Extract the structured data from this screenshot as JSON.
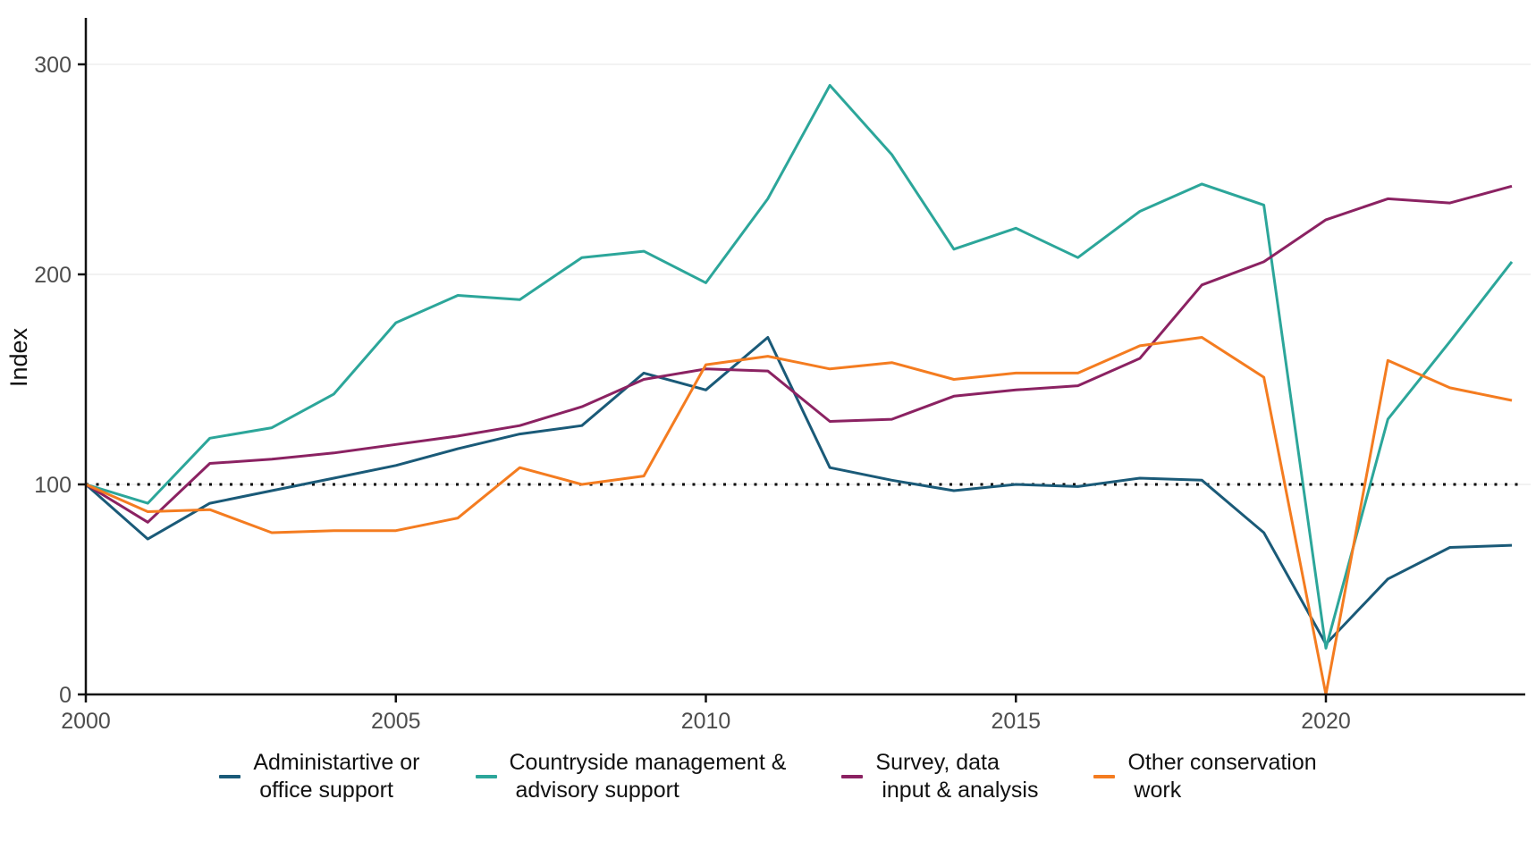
{
  "figure": {
    "ylabel": "Index",
    "background": "#ffffff",
    "axis_color": "#111111",
    "tick_label_color": "#4d4d4d",
    "gridline_color": "#eeeeee"
  },
  "chart_data": {
    "type": "line",
    "title": "",
    "xlabel": "",
    "ylabel": "Index",
    "x": [
      2000,
      2001,
      2002,
      2003,
      2004,
      2005,
      2006,
      2007,
      2008,
      2009,
      2010,
      2011,
      2012,
      2013,
      2014,
      2015,
      2016,
      2017,
      2018,
      2019,
      2020,
      2021,
      2022,
      2023
    ],
    "x_tick_labels": [
      "2000",
      "2005",
      "2010",
      "2015",
      "2020"
    ],
    "x_tick_values": [
      2000,
      2005,
      2010,
      2015,
      2020
    ],
    "y_tick_labels": [
      "0",
      "100",
      "200",
      "300"
    ],
    "y_tick_values": [
      0,
      100,
      200,
      300
    ],
    "xlim": [
      2000,
      2023
    ],
    "ylim": [
      0,
      322
    ],
    "grid": "horizontal-only",
    "legend_position": "bottom",
    "reference_line": {
      "y": 100,
      "style": "dotted",
      "color": "#000000"
    },
    "series": [
      {
        "name": "Administartive or\n office support",
        "color": "#1A5A78",
        "values": [
          100,
          74,
          91,
          97,
          103,
          109,
          117,
          124,
          128,
          153,
          145,
          170,
          108,
          102,
          97,
          100,
          99,
          103,
          102,
          77,
          24,
          55,
          70,
          71
        ]
      },
      {
        "name": "Countryside management &\n advisory support",
        "color": "#2CA69A",
        "values": [
          100,
          91,
          122,
          127,
          143,
          177,
          190,
          188,
          208,
          211,
          196,
          236,
          290,
          257,
          212,
          222,
          208,
          230,
          243,
          233,
          22,
          131,
          168,
          206
        ]
      },
      {
        "name": "Survey, data\n input & analysis",
        "color": "#8B2262",
        "values": [
          100,
          82,
          110,
          112,
          115,
          119,
          123,
          128,
          137,
          150,
          155,
          154,
          130,
          131,
          142,
          145,
          147,
          160,
          195,
          206,
          226,
          236,
          234,
          242
        ]
      },
      {
        "name": "Other conservation\n work",
        "color": "#F47C20",
        "values": [
          100,
          87,
          88,
          77,
          78,
          78,
          84,
          108,
          100,
          104,
          157,
          161,
          155,
          158,
          150,
          153,
          153,
          166,
          170,
          151,
          0,
          159,
          146,
          140
        ]
      }
    ]
  }
}
